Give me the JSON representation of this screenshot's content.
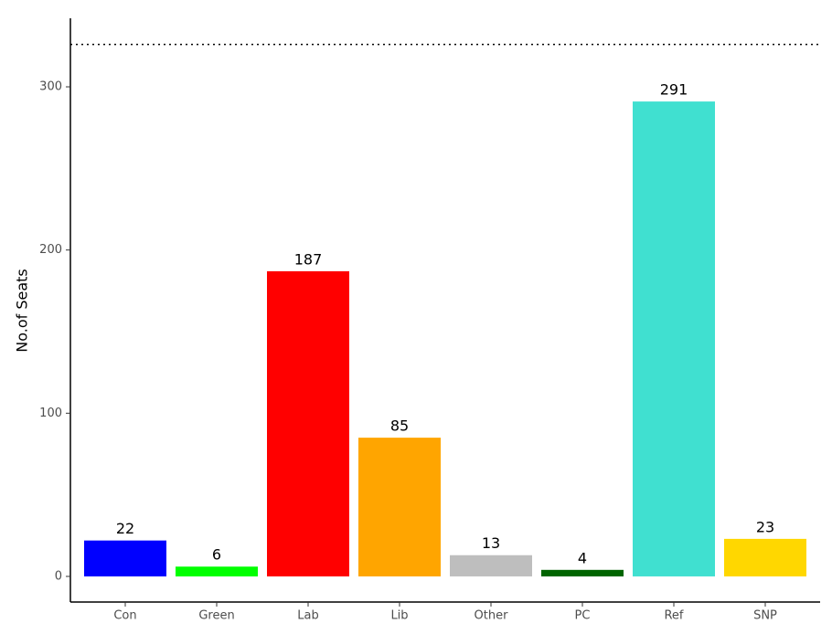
{
  "chart_data": {
    "type": "bar",
    "y_label": "No.of Seats",
    "categories": [
      "Con",
      "Green",
      "Lab",
      "Lib",
      "Other",
      "PC",
      "Ref",
      "SNP"
    ],
    "values": [
      22,
      6,
      187,
      85,
      13,
      4,
      291,
      23
    ],
    "colors": [
      "#0000ff",
      "#00ff00",
      "#ff0000",
      "#ffa500",
      "#bebebe",
      "#006400",
      "#40e0d0",
      "#ffd700"
    ],
    "ylim": [
      -15.7,
      342
    ],
    "yticks": [
      0,
      100,
      200,
      300
    ],
    "hline": 326,
    "grid": false
  }
}
